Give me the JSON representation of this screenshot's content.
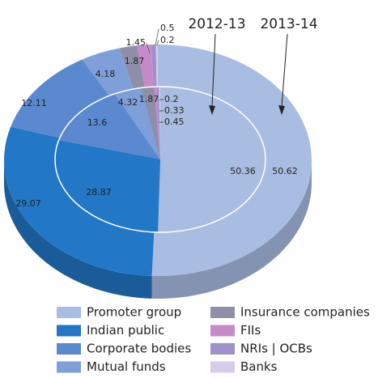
{
  "chart_data": {
    "type": "pie",
    "categories": [
      "Promoter group",
      "Indian public",
      "Corporate bodies",
      "Mutual funds",
      "Insurance companies",
      "FIIs",
      "NRIs | OCBs",
      "Banks"
    ],
    "colors": [
      "#a9bde3",
      "#2277c6",
      "#5a89d0",
      "#7f9fd8",
      "#8e8ea8",
      "#c78ac9",
      "#9d90cc",
      "#d7cdea"
    ],
    "series": [
      {
        "name": "2013-14",
        "values": [
          50.62,
          29.07,
          12.11,
          4.18,
          1.87,
          1.45,
          0.5,
          0.2
        ]
      },
      {
        "name": "2012-13",
        "values": [
          50.36,
          28.87,
          13.6,
          4.32,
          1.87,
          0.45,
          0.33,
          0.2
        ]
      }
    ]
  }
}
